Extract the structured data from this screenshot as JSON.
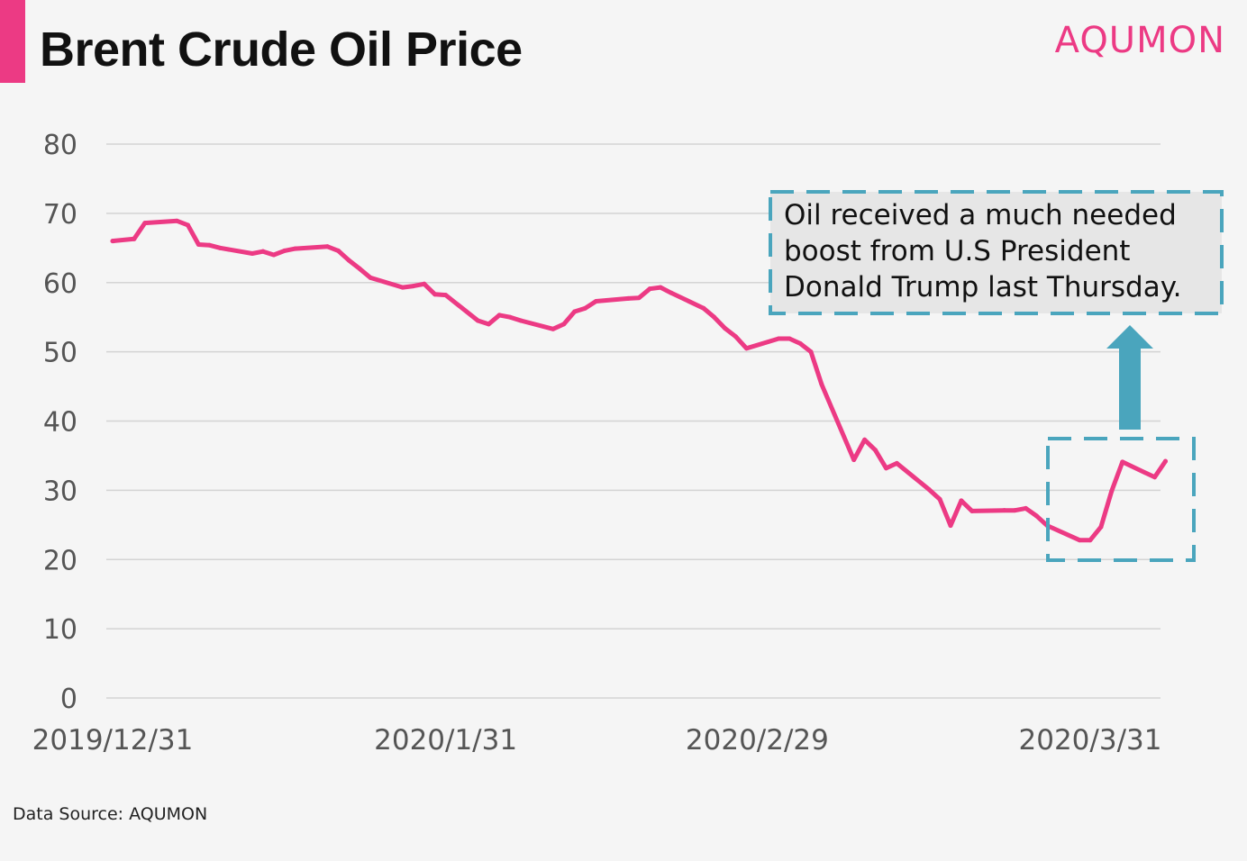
{
  "header": {
    "title": "Brent Crude Oil Price",
    "logo": "AQUMON"
  },
  "colors": {
    "accent": "#ec3a84",
    "annotation": "#4aa5bd",
    "grid": "#d4d4d4",
    "axis_text": "#555555"
  },
  "footer": {
    "source": "Data Source: AQUMON"
  },
  "chart_data": {
    "type": "line",
    "title": "Brent Crude Oil Price",
    "xlabel": "",
    "ylabel": "",
    "ylim": [
      0,
      80
    ],
    "yticks": [
      0,
      10,
      20,
      30,
      40,
      50,
      60,
      70,
      80
    ],
    "xlim": [
      "2019-12-31",
      "2020-04-03"
    ],
    "xtick_labels": [
      {
        "date": "2019-12-31",
        "label": "2019/12/31"
      },
      {
        "date": "2020-01-31",
        "label": "2020/1/31"
      },
      {
        "date": "2020-02-29",
        "label": "2020/2/29"
      },
      {
        "date": "2020-03-31",
        "label": "2020/3/31"
      }
    ],
    "grid": true,
    "legend": "none",
    "series": [
      {
        "name": "",
        "points": [
          [
            "2019-12-31",
            66.0
          ],
          [
            "2020-01-02",
            66.3
          ],
          [
            "2020-01-03",
            68.6
          ],
          [
            "2020-01-06",
            68.9
          ],
          [
            "2020-01-07",
            68.3
          ],
          [
            "2020-01-08",
            65.5
          ],
          [
            "2020-01-09",
            65.4
          ],
          [
            "2020-01-10",
            65.0
          ],
          [
            "2020-01-13",
            64.2
          ],
          [
            "2020-01-14",
            64.5
          ],
          [
            "2020-01-15",
            64.0
          ],
          [
            "2020-01-16",
            64.6
          ],
          [
            "2020-01-17",
            64.9
          ],
          [
            "2020-01-20",
            65.2
          ],
          [
            "2020-01-21",
            64.6
          ],
          [
            "2020-01-22",
            63.2
          ],
          [
            "2020-01-23",
            62.0
          ],
          [
            "2020-01-24",
            60.7
          ],
          [
            "2020-01-27",
            59.3
          ],
          [
            "2020-01-28",
            59.5
          ],
          [
            "2020-01-29",
            59.8
          ],
          [
            "2020-01-30",
            58.3
          ],
          [
            "2020-01-31",
            58.2
          ],
          [
            "2020-02-03",
            54.5
          ],
          [
            "2020-02-04",
            54.0
          ],
          [
            "2020-02-05",
            55.3
          ],
          [
            "2020-02-06",
            55.0
          ],
          [
            "2020-02-07",
            54.5
          ],
          [
            "2020-02-10",
            53.3
          ],
          [
            "2020-02-11",
            54.0
          ],
          [
            "2020-02-12",
            55.8
          ],
          [
            "2020-02-13",
            56.3
          ],
          [
            "2020-02-14",
            57.3
          ],
          [
            "2020-02-17",
            57.7
          ],
          [
            "2020-02-18",
            57.8
          ],
          [
            "2020-02-19",
            59.1
          ],
          [
            "2020-02-20",
            59.3
          ],
          [
            "2020-02-21",
            58.5
          ],
          [
            "2020-02-24",
            56.3
          ],
          [
            "2020-02-25",
            55.0
          ],
          [
            "2020-02-26",
            53.4
          ],
          [
            "2020-02-27",
            52.2
          ],
          [
            "2020-02-28",
            50.5
          ],
          [
            "2020-03-02",
            51.9
          ],
          [
            "2020-03-03",
            51.9
          ],
          [
            "2020-03-04",
            51.2
          ],
          [
            "2020-03-05",
            50.0
          ],
          [
            "2020-03-06",
            45.3
          ],
          [
            "2020-03-09",
            34.4
          ],
          [
            "2020-03-10",
            37.3
          ],
          [
            "2020-03-11",
            35.8
          ],
          [
            "2020-03-12",
            33.2
          ],
          [
            "2020-03-13",
            33.9
          ],
          [
            "2020-03-16",
            30.1
          ],
          [
            "2020-03-17",
            28.7
          ],
          [
            "2020-03-18",
            24.9
          ],
          [
            "2020-03-19",
            28.5
          ],
          [
            "2020-03-20",
            27.0
          ],
          [
            "2020-03-23",
            27.1
          ],
          [
            "2020-03-24",
            27.1
          ],
          [
            "2020-03-25",
            27.4
          ],
          [
            "2020-03-26",
            26.3
          ],
          [
            "2020-03-27",
            24.9
          ],
          [
            "2020-03-30",
            22.8
          ],
          [
            "2020-03-31",
            22.8
          ],
          [
            "2020-04-01",
            24.7
          ],
          [
            "2020-04-02",
            29.9
          ],
          [
            "2020-04-03",
            34.1
          ],
          [
            "2020-04-06",
            31.9
          ],
          [
            "2020-04-07",
            34.2
          ]
        ]
      }
    ],
    "annotation": {
      "lines": [
        "Oil received a much needed",
        "boost from U.S President",
        "Donald Trump last Thursday."
      ]
    }
  }
}
